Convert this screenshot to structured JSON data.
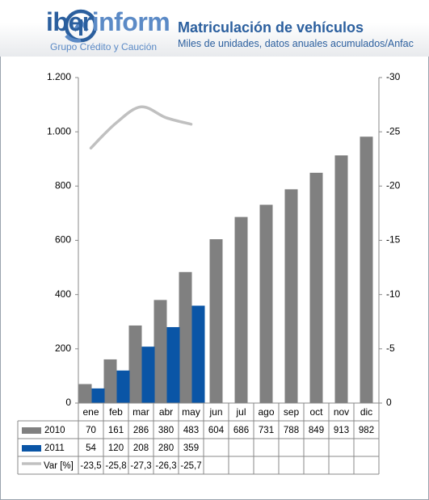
{
  "header": {
    "brand": "iberinform",
    "brand_prefix": "iber",
    "brand_suffix": "inform",
    "brand_tagline": "Grupo Crédito y Caución",
    "brand_color": "#2b5f9e",
    "accent_color": "#5b8ac6"
  },
  "chart_data": {
    "type": "bar",
    "title": "Matriculación de vehículos",
    "subtitle": "Miles de unidades, datos anuales acumulados/Anfac",
    "categories": [
      "ene",
      "feb",
      "mar",
      "abr",
      "may",
      "jun",
      "jul",
      "ago",
      "sep",
      "oct",
      "nov",
      "dic"
    ],
    "series": [
      {
        "name": "2010",
        "kind": "bar",
        "color": "#808080",
        "values": [
          70,
          161,
          286,
          380,
          483,
          604,
          686,
          731,
          788,
          849,
          913,
          982
        ]
      },
      {
        "name": "2011",
        "kind": "bar",
        "color": "#0a55a6",
        "values": [
          54,
          120,
          208,
          280,
          359,
          null,
          null,
          null,
          null,
          null,
          null,
          null
        ]
      },
      {
        "name": "Var [%]",
        "kind": "line",
        "axis": "right",
        "color": "#c0c0c0",
        "values": [
          -23.5,
          -25.8,
          -27.3,
          -26.3,
          -25.7,
          null,
          null,
          null,
          null,
          null,
          null,
          null
        ]
      }
    ],
    "table_rows": [
      {
        "label": "2010",
        "cells": [
          "70",
          "161",
          "286",
          "380",
          "483",
          "604",
          "686",
          "731",
          "788",
          "849",
          "913",
          "982"
        ]
      },
      {
        "label": "2011",
        "cells": [
          "54",
          "120",
          "208",
          "280",
          "359",
          "",
          "",
          "",
          "",
          "",
          "",
          ""
        ]
      },
      {
        "label": "Var [%]",
        "cells": [
          "-23,5",
          "-25,8",
          "-27,3",
          "-26,3",
          "-25,7",
          "",
          "",
          "",
          "",
          "",
          "",
          ""
        ]
      }
    ],
    "y_left": {
      "ylim": [
        0,
        1200
      ],
      "ticks": [
        0,
        200,
        400,
        600,
        800,
        1000,
        1200
      ],
      "tick_labels": [
        "0",
        "200",
        "400",
        "600",
        "800",
        "1.000",
        "1.200"
      ]
    },
    "y_right": {
      "ylim": [
        0,
        -30
      ],
      "ticks": [
        0,
        -5,
        -10,
        -15,
        -20,
        -25,
        -30
      ],
      "tick_labels": [
        "0",
        "-5",
        "-10",
        "-15",
        "-20",
        "-25",
        "-30"
      ]
    },
    "grid": true,
    "legend": "data-table"
  }
}
